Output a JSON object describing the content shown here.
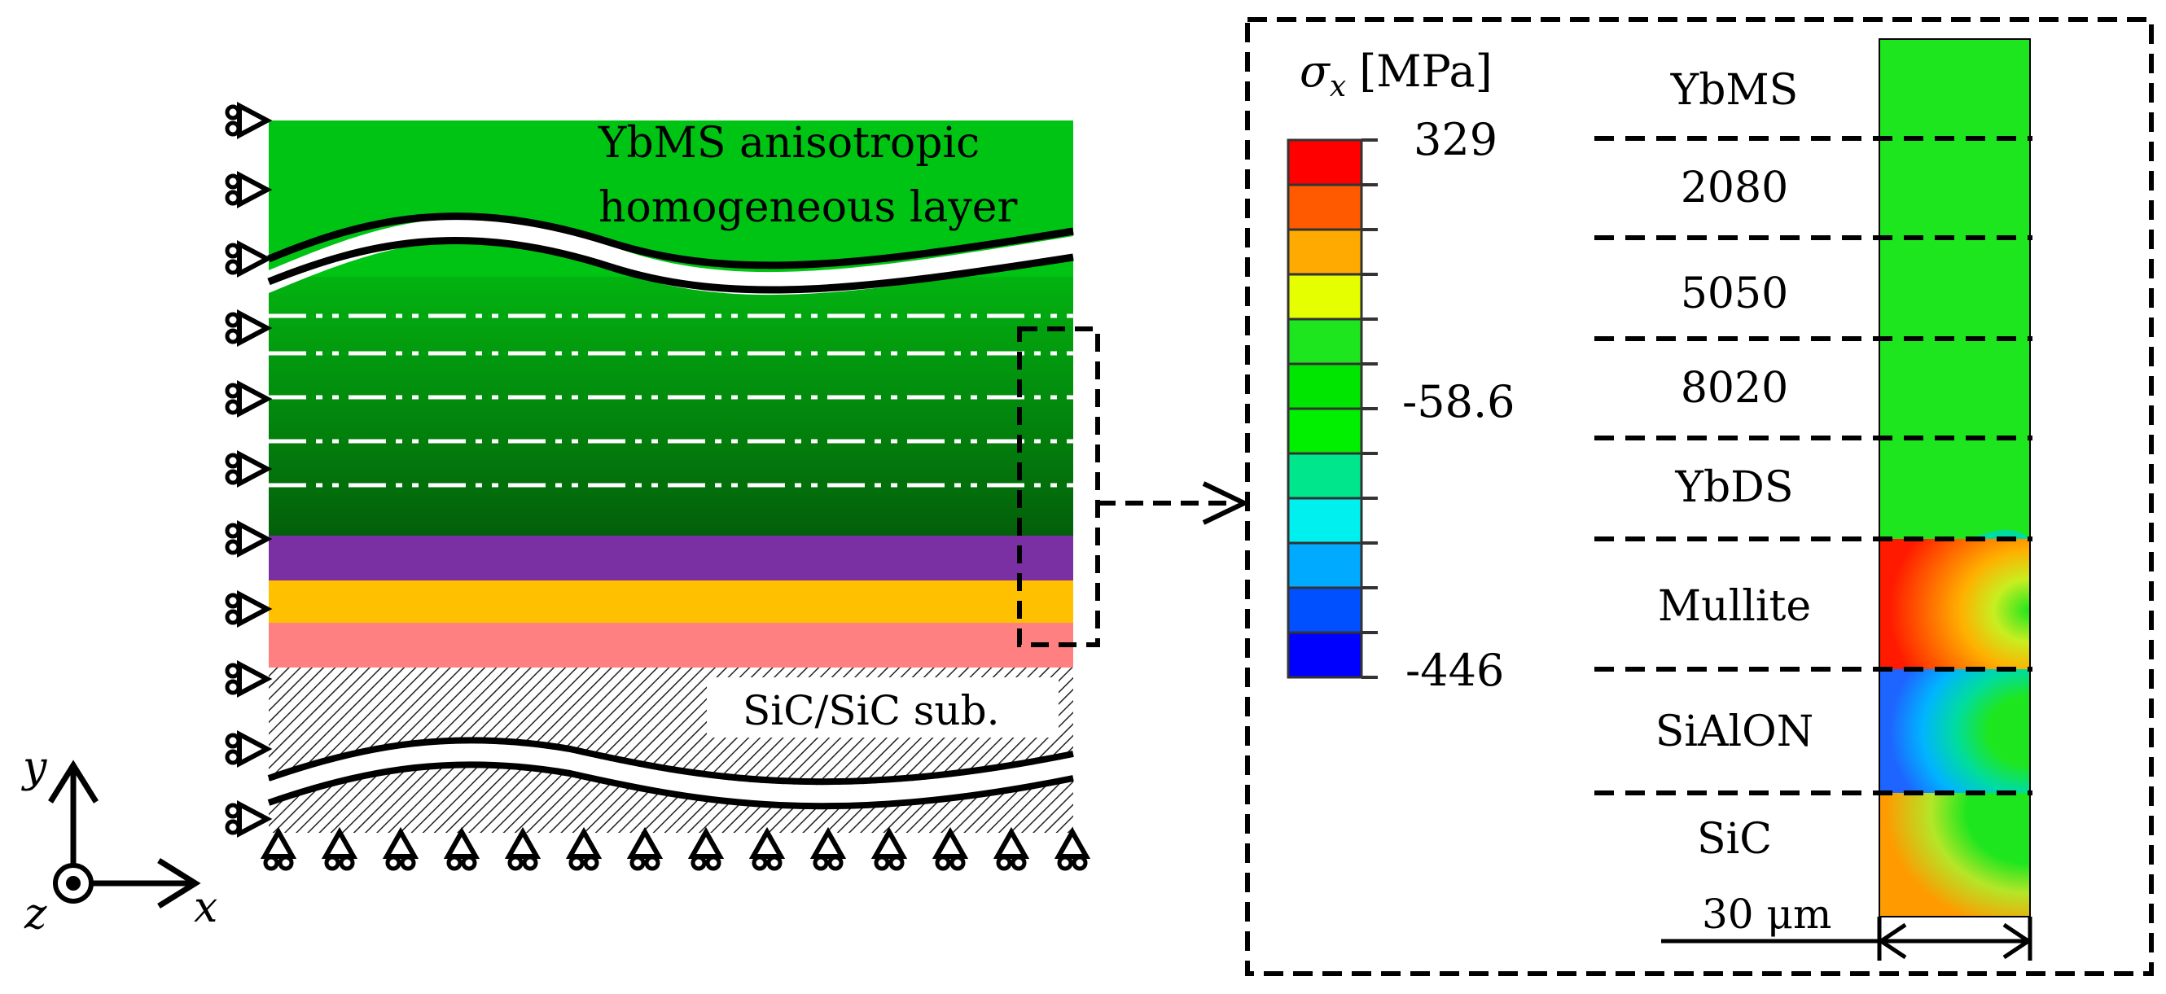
{
  "left_model": {
    "top_layer_label_line1": "YbMS anisotropic",
    "top_layer_label_line2": "homogeneous layer",
    "substrate_label": "SiC/SiC sub.",
    "layer_colors": {
      "top_green": "#00c414",
      "gradient_top": "#02b310",
      "gradient_bottom": "#035f0a",
      "mullite": "#7a2fa2",
      "sialon": "#ffc000",
      "bondcoat": "#ff8080"
    }
  },
  "axes": {
    "y_label": "y",
    "x_label": "x",
    "z_label": "z"
  },
  "colorbar": {
    "title_symbol": "σ",
    "title_subscript": "x",
    "title_unit": "[MPa]",
    "max_label": "329",
    "mid_label": "-58.6",
    "min_label": "-446",
    "colors": [
      "#ff0000",
      "#ff5a00",
      "#ffaa00",
      "#e6ff00",
      "#1ee61e",
      "#00e600",
      "#00f000",
      "#00e68c",
      "#00f0f0",
      "#00aaff",
      "#0050ff",
      "#0000ff"
    ]
  },
  "zoom_panel": {
    "layers": [
      "YbMS",
      "2080",
      "5050",
      "8020",
      "YbDS",
      "Mullite",
      "SiAlON",
      "SiC"
    ],
    "scale_label": "30 μm"
  }
}
